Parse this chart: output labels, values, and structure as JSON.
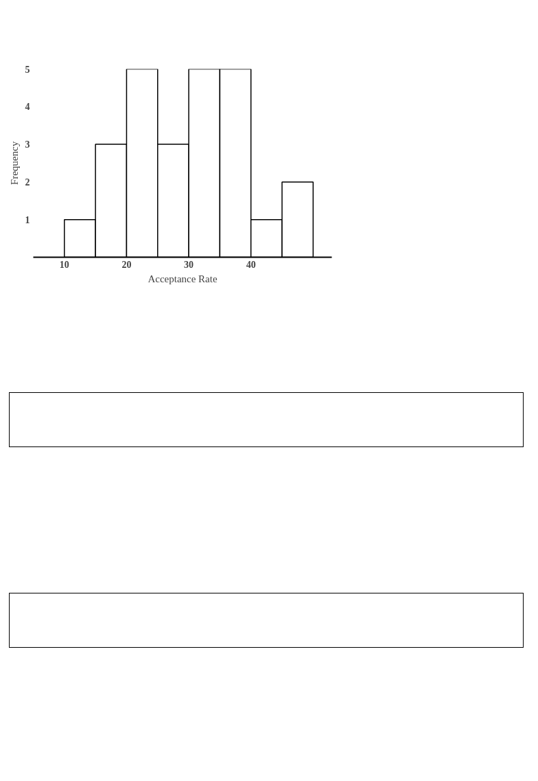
{
  "chart_data": {
    "type": "histogram",
    "xlabel": "Acceptance Rate",
    "ylabel": "Frequency",
    "bins": [
      10,
      15,
      20,
      25,
      30,
      35,
      40,
      45,
      50
    ],
    "values": [
      1,
      3,
      5,
      3,
      5,
      5,
      1,
      2
    ],
    "color": "#ffffff",
    "xlim": [
      5,
      53
    ],
    "ylim": [
      0,
      5
    ],
    "xticks": [
      10,
      20,
      30,
      40
    ],
    "yticks": [
      1,
      2,
      3,
      4,
      5
    ],
    "grid": false
  }
}
